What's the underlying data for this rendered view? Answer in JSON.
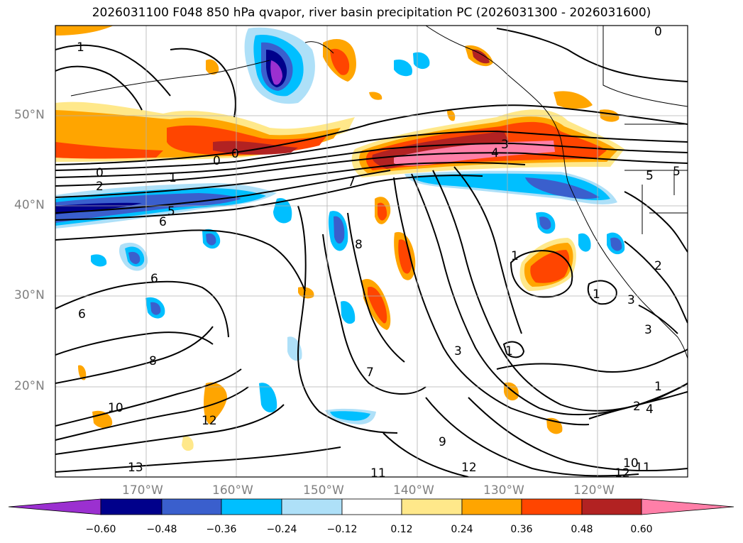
{
  "title": "2026031100 F048 850 hPa qvapor, river basin precipitation PC (2026031300 - 2026031600)",
  "lat_labels": [
    "50°N",
    "40°N",
    "30°N",
    "20°N"
  ],
  "lon_labels": [
    "170°W",
    "160°W",
    "150°W",
    "140°W",
    "130°W",
    "120°W"
  ],
  "colorbar": {
    "ticks": [
      "−0.60",
      "−0.48",
      "−0.36",
      "−0.24",
      "−0.12",
      "0.12",
      "0.24",
      "0.36",
      "0.48",
      "0.60"
    ],
    "colors": [
      "#9b30d0",
      "#00008b",
      "#3a5fcd",
      "#00bfff",
      "#aee0f8",
      "#ffffff",
      "#ffe88a",
      "#ffa500",
      "#ff4500",
      "#b22222",
      "#ff7fa8"
    ]
  },
  "contour_labels": [
    "0",
    "1",
    "2",
    "3",
    "4",
    "5",
    "6",
    "7",
    "8",
    "9",
    "10",
    "11",
    "12",
    "13"
  ]
}
